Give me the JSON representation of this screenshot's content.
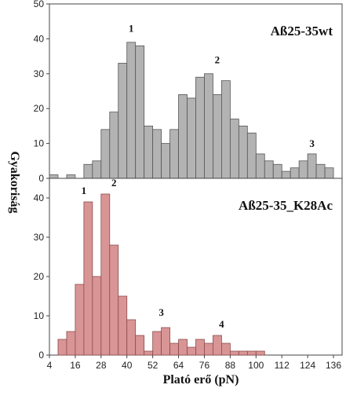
{
  "chart_data": [
    {
      "type": "bar",
      "title": "Aß25-35wt",
      "xlabel": "Plató erő (pN)",
      "ylabel": "Gyakoriság",
      "ylim": [
        0,
        50
      ],
      "y_ticks": [
        "0",
        "10",
        "20",
        "30",
        "40",
        "50"
      ],
      "xlim": [
        4,
        140
      ],
      "bin_width": 4,
      "color": "#b3b3b3",
      "edge_color": "#555555",
      "x": [
        6,
        10,
        14,
        18,
        22,
        26,
        30,
        34,
        38,
        42,
        46,
        50,
        54,
        58,
        62,
        66,
        70,
        74,
        78,
        82,
        86,
        90,
        94,
        98,
        102,
        106,
        110,
        114,
        118,
        122,
        126,
        130,
        134,
        138
      ],
      "values": [
        1,
        0,
        1,
        0,
        4,
        5,
        14,
        19,
        33,
        39,
        38,
        15,
        14,
        10,
        14,
        24,
        23,
        29,
        30,
        24,
        28,
        17,
        15,
        13,
        7,
        5,
        4,
        2,
        3,
        5,
        7,
        4,
        3,
        0
      ],
      "annotations": [
        {
          "text": "1",
          "x": 42,
          "y": 42
        },
        {
          "text": "2",
          "x": 82,
          "y": 33
        },
        {
          "text": "3",
          "x": 126,
          "y": 9
        }
      ]
    },
    {
      "type": "bar",
      "title": "Aß25-35_K28Ac",
      "xlabel": "Plató erő (pN)",
      "ylabel": "Gyakoriság",
      "ylim": [
        0,
        45
      ],
      "y_ticks": [
        "0",
        "10",
        "20",
        "30",
        "40"
      ],
      "x_ticks": [
        "4",
        "16",
        "28",
        "40",
        "52",
        "64",
        "76",
        "88",
        "100",
        "112",
        "124",
        "136"
      ],
      "xlim": [
        4,
        140
      ],
      "bin_width": 4,
      "color": "#d99595",
      "edge_color": "#8a4a4a",
      "x": [
        6,
        10,
        14,
        18,
        22,
        26,
        30,
        34,
        38,
        42,
        46,
        50,
        54,
        58,
        62,
        66,
        70,
        74,
        78,
        82,
        86,
        90,
        94,
        98,
        102,
        106
      ],
      "values": [
        0,
        4,
        6,
        18,
        39,
        20,
        41,
        28,
        15,
        9,
        5,
        1,
        6,
        7,
        3,
        4,
        2,
        4,
        3,
        5,
        3,
        1,
        1,
        1,
        1,
        0
      ],
      "annotations": [
        {
          "text": "1",
          "x": 20,
          "y": 41
        },
        {
          "text": "2",
          "x": 34,
          "y": 43
        },
        {
          "text": "3",
          "x": 56,
          "y": 10
        },
        {
          "text": "4",
          "x": 84,
          "y": 7
        }
      ]
    }
  ]
}
